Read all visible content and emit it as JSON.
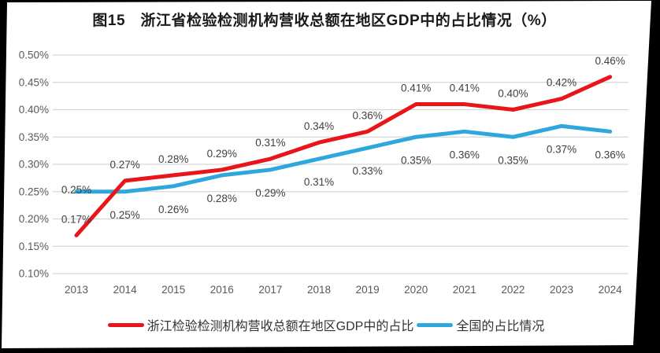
{
  "title": "图15　浙江省检验检测机构营收总额在地区GDP中的占比情况（%）",
  "chart_data": {
    "type": "line",
    "x": [
      "2013",
      "2014",
      "2015",
      "2016",
      "2017",
      "2018",
      "2019",
      "2020",
      "2021",
      "2022",
      "2023",
      "2024"
    ],
    "series": [
      {
        "name": "浙江检验检测机构营收总额在地区GDP中的占比",
        "color": "#e8151a",
        "values": [
          0.17,
          0.27,
          0.28,
          0.29,
          0.31,
          0.34,
          0.36,
          0.41,
          0.41,
          0.4,
          0.42,
          0.46
        ],
        "label_position": "above",
        "label_dy_overrides": {}
      },
      {
        "name": "全国的占比情况",
        "color": "#2ea7dc",
        "values": [
          0.25,
          0.25,
          0.26,
          0.28,
          0.29,
          0.31,
          0.33,
          0.35,
          0.36,
          0.35,
          0.37,
          0.36
        ],
        "label_position": "below",
        "label_dy_overrides": {
          "0": 2
        }
      }
    ],
    "title": "图15　浙江省检验检测机构营收总额在地区GDP中的占比情况（%）",
    "xlabel": "",
    "ylabel": "",
    "ylim": [
      0.1,
      0.5
    ],
    "ytick_step": 0.05,
    "value_suffix": "%",
    "grid": true,
    "legend_position": "bottom",
    "colors": {
      "gridline": "#d6d6d6",
      "axis_text": "#595959",
      "data_label_text": "#404040",
      "page_background": "#ffffff",
      "frame_background": "#000000"
    }
  }
}
